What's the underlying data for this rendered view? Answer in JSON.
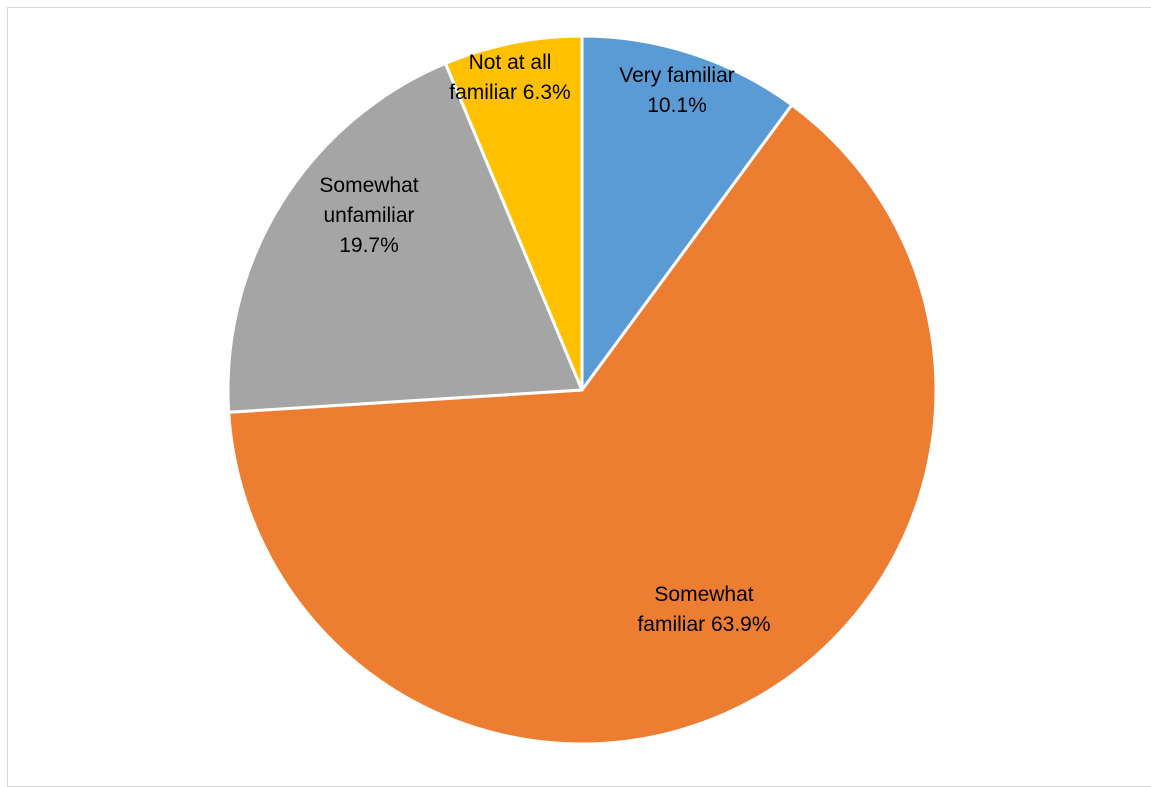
{
  "chart_data": {
    "type": "pie",
    "title": "",
    "slices": [
      {
        "name": "Very familiar",
        "value": 10.1,
        "label_lines": [
          "Very familiar",
          "10.1%"
        ],
        "color": "#5B9BD5"
      },
      {
        "name": "Somewhat familiar",
        "value": 63.9,
        "label_lines": [
          "Somewhat",
          "familiar 63.9%"
        ],
        "color": "#ED7D31"
      },
      {
        "name": "Somewhat unfamiliar",
        "value": 19.7,
        "label_lines": [
          "Somewhat",
          "unfamiliar",
          "19.7%"
        ],
        "color": "#A5A5A5"
      },
      {
        "name": "Not at all familiar",
        "value": 6.3,
        "label_lines": [
          "Not at all",
          "familiar 6.3%"
        ],
        "color": "#FFC000"
      }
    ],
    "start_angle": "12 o'clock",
    "direction": "clockwise",
    "legend": "none",
    "data_labels": "inside slices"
  }
}
